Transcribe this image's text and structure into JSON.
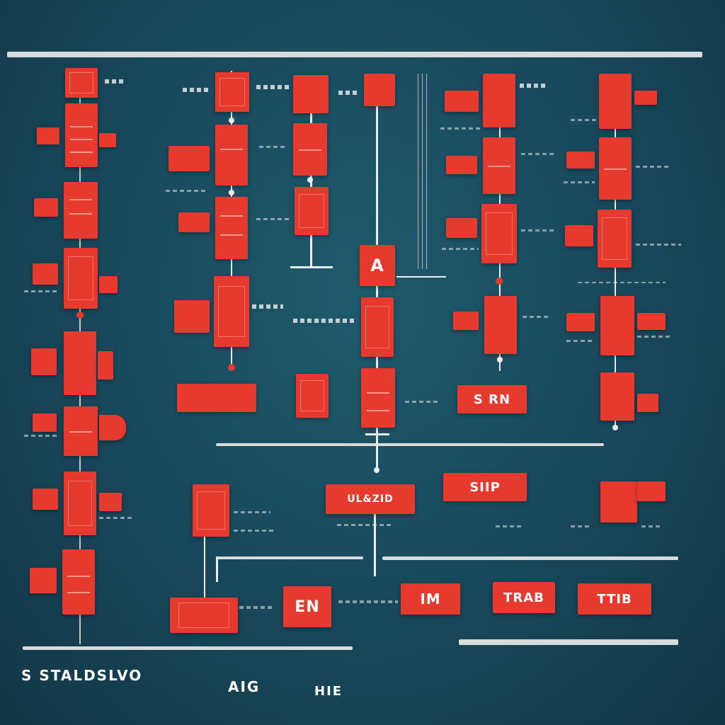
{
  "labels": {
    "a_block": "A",
    "sr_block": "S RN",
    "en_block": "EN",
    "im_block": "IM",
    "tag_left": "UL&ZID",
    "tag_mid": "SIIP",
    "tag_right_a": "TRAB",
    "tag_right_b": "TTIB"
  },
  "footer": {
    "left": "S STALDSLVO",
    "mid": "AIG",
    "right": "HIE"
  },
  "colors": {
    "background": "#18475a",
    "accent_red": "#e63a2e",
    "line": "#e9eded"
  }
}
